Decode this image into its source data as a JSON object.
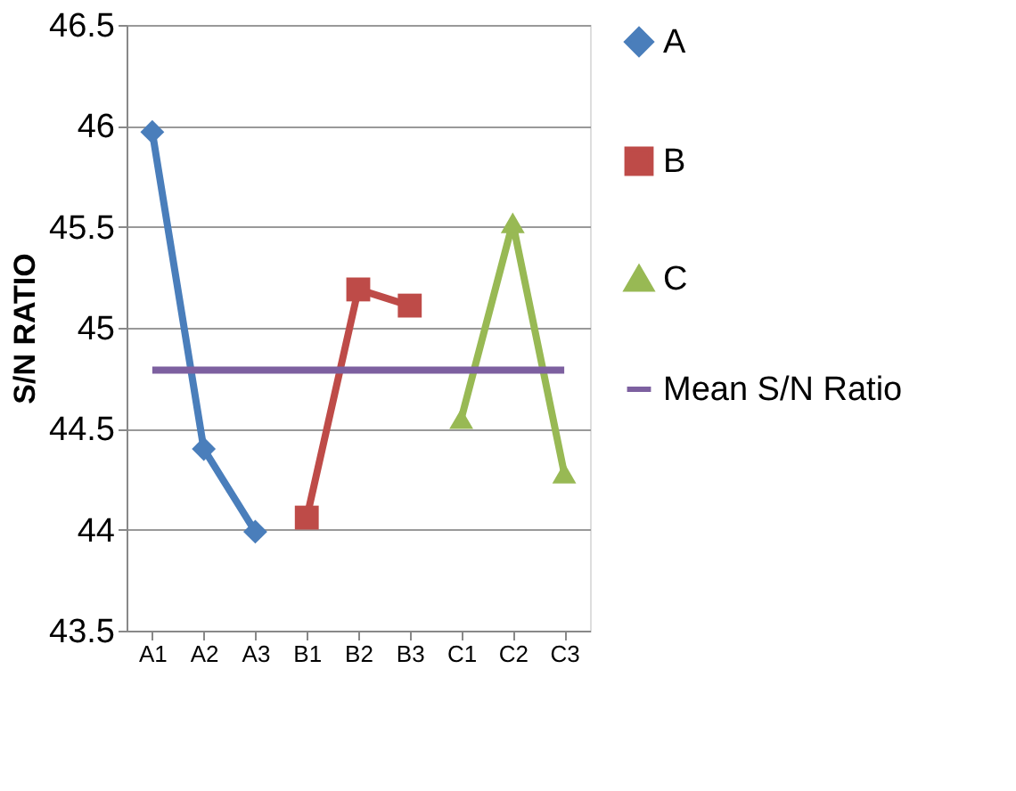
{
  "chart_data": {
    "type": "line",
    "ylabel": "S/N RATIO",
    "categories": [
      "A1",
      "A2",
      "A3",
      "B1",
      "B2",
      "B3",
      "C1",
      "C2",
      "C3"
    ],
    "series": [
      {
        "name": "A",
        "color": "#4a7ebb",
        "marker": "diamond",
        "values": [
          45.97,
          44.4,
          43.99,
          null,
          null,
          null,
          null,
          null,
          null
        ]
      },
      {
        "name": "B",
        "color": "#be4b48",
        "marker": "square",
        "values": [
          null,
          null,
          null,
          44.06,
          45.19,
          45.11,
          null,
          null,
          null
        ]
      },
      {
        "name": "C",
        "color": "#98b954",
        "marker": "triangle",
        "values": [
          null,
          null,
          null,
          null,
          null,
          null,
          44.55,
          45.52,
          44.28
        ]
      },
      {
        "name": "Mean S/N Ratio",
        "color": "#7d60a0",
        "marker": "none",
        "values": [
          44.79,
          44.79,
          44.79,
          44.79,
          44.79,
          44.79,
          44.79,
          44.79,
          44.79
        ]
      }
    ],
    "ylim": [
      43.5,
      46.5
    ],
    "yticks": [
      43.5,
      44,
      44.5,
      45,
      45.5,
      46,
      46.5
    ],
    "grid": "y",
    "legend": "right"
  }
}
